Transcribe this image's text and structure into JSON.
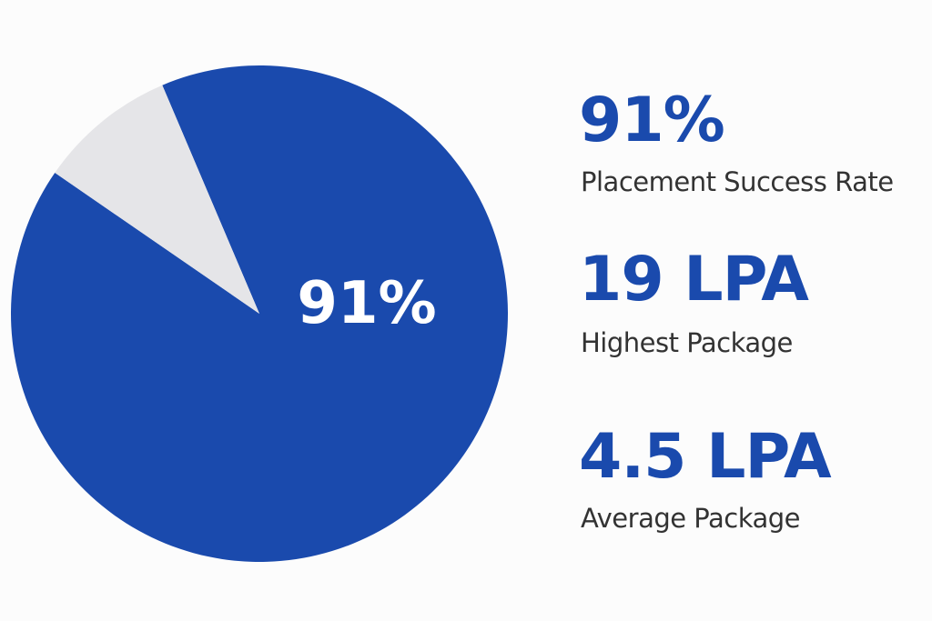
{
  "chart_data": {
    "type": "pie",
    "values": [
      91,
      9
    ],
    "value_labels": [
      "91%",
      null
    ],
    "colors": [
      "#1a4aad",
      "#e5e5e8"
    ]
  },
  "stats": [
    {
      "value": "91%",
      "label": "Placement Success Rate"
    },
    {
      "value": "19 LPA",
      "label": "Highest Package"
    },
    {
      "value": "4.5 LPA",
      "label": "Average Package"
    }
  ]
}
